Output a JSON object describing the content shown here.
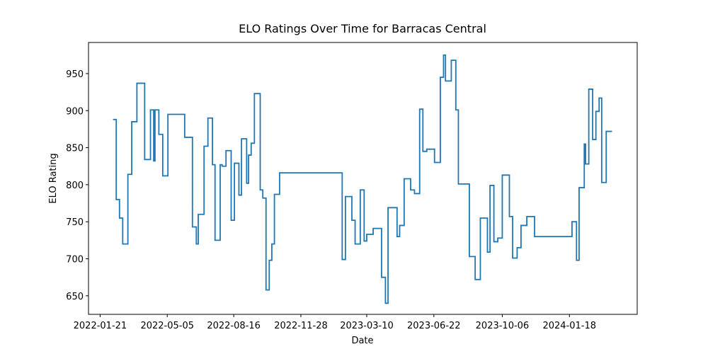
{
  "chart_data": {
    "type": "line",
    "drawstyle": "steps-post",
    "title": "ELO Ratings Over Time for Barracas Central",
    "x_label": "Date",
    "y_label": "ELO Rating",
    "xlim": [
      "2022-01-03",
      "2024-05-02"
    ],
    "xticks": [
      "2022-01-21",
      "2022-05-05",
      "2022-08-16",
      "2022-11-28",
      "2023-03-10",
      "2023-06-22",
      "2023-10-06",
      "2024-01-18"
    ],
    "ylim": [
      625,
      992
    ],
    "yticks": [
      650,
      700,
      750,
      800,
      850,
      900,
      950
    ],
    "series": [
      {
        "color": "#1f77b4",
        "x": [
          "2022-02-10",
          "2022-02-15",
          "2022-02-20",
          "2022-02-25",
          "2022-03-05",
          "2022-03-11",
          "2022-03-19",
          "2022-03-31",
          "2022-04-09",
          "2022-04-14",
          "2022-04-16",
          "2022-04-22",
          "2022-04-28",
          "2022-05-06",
          "2022-06-01",
          "2022-06-13",
          "2022-06-19",
          "2022-06-22",
          "2022-07-01",
          "2022-07-07",
          "2022-07-14",
          "2022-07-18",
          "2022-07-26",
          "2022-07-29",
          "2022-08-04",
          "2022-08-12",
          "2022-08-17",
          "2022-08-24",
          "2022-08-28",
          "2022-09-05",
          "2022-09-08",
          "2022-09-12",
          "2022-09-17",
          "2022-09-26",
          "2022-09-30",
          "2022-10-05",
          "2022-10-10",
          "2022-10-14",
          "2022-10-18",
          "2022-10-26",
          "2023-01-31",
          "2023-02-05",
          "2023-02-15",
          "2023-02-20",
          "2023-02-28",
          "2023-03-06",
          "2023-03-10",
          "2023-03-20",
          "2023-04-02",
          "2023-04-08",
          "2023-04-12",
          "2023-04-26",
          "2023-04-30",
          "2023-05-07",
          "2023-05-17",
          "2023-05-23",
          "2023-05-31",
          "2023-06-05",
          "2023-06-11",
          "2023-06-23",
          "2023-07-02",
          "2023-07-07",
          "2023-07-10",
          "2023-07-19",
          "2023-07-26",
          "2023-07-30",
          "2023-08-16",
          "2023-08-25",
          "2023-09-02",
          "2023-09-13",
          "2023-09-17",
          "2023-09-23",
          "2023-09-29",
          "2023-10-06",
          "2023-10-17",
          "2023-10-22",
          "2023-10-29",
          "2023-11-04",
          "2023-11-13",
          "2023-11-25",
          "2024-01-22",
          "2024-01-29",
          "2024-02-02",
          "2024-02-10",
          "2024-02-12",
          "2024-02-17",
          "2024-02-23",
          "2024-02-28",
          "2024-03-04",
          "2024-03-08",
          "2024-03-15",
          "2024-03-24"
        ],
        "values": [
          888,
          780,
          755,
          720,
          814,
          885,
          937,
          834,
          901,
          832,
          901,
          868,
          812,
          895,
          864,
          743,
          720,
          760,
          852,
          890,
          827,
          725,
          827,
          825,
          846,
          752,
          829,
          786,
          862,
          802,
          840,
          856,
          923,
          793,
          782,
          658,
          698,
          720,
          787,
          816,
          699,
          784,
          752,
          720,
          793,
          724,
          733,
          741,
          675,
          640,
          769,
          730,
          745,
          808,
          793,
          788,
          902,
          845,
          848,
          830,
          945,
          975,
          940,
          968,
          901,
          801,
          703,
          672,
          755,
          709,
          799,
          723,
          728,
          813,
          757,
          701,
          715,
          745,
          757,
          730,
          750,
          698,
          796,
          855,
          828,
          929,
          861,
          899,
          917,
          803,
          872,
          872
        ]
      }
    ]
  }
}
